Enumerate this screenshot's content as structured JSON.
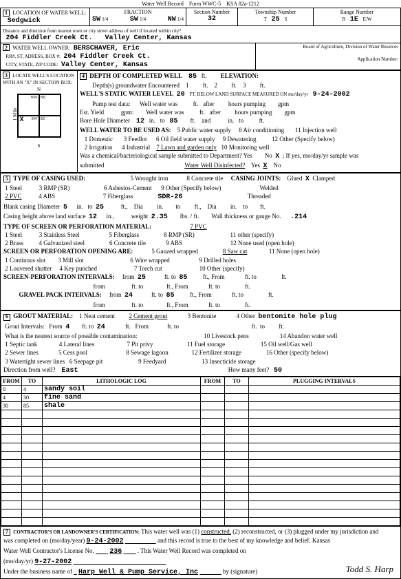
{
  "header": {
    "title": "Water Well Record",
    "form": "Form WWC-5",
    "statute": "KSA 82a-1212"
  },
  "loc": {
    "county_label": "LOCATION OF WATER WELL:",
    "county": "Sedgwick",
    "fraction_label": "FRACTION",
    "frac1": "SW",
    "frac1q": "1/4",
    "frac2": "SW",
    "frac2q": "1/4",
    "frac3": "NW",
    "frac3q": "1/4",
    "section_label": "Section Number",
    "section": "32",
    "township_label": "Township Number",
    "township_t": "T",
    "township": "25",
    "township_s": "S",
    "range_label": "Range Number",
    "range_r": "R",
    "range": "1E",
    "range_ew": "E/W"
  },
  "dist": {
    "label": "Distance and direction from nearest town or city  street address of well if located within city?",
    "addr": "204 Fiddler Creek Ct.",
    "city": "Valley Center, Kansas"
  },
  "owner": {
    "label": "WATER WELL OWNER:",
    "name": "BERSCHAVER, Eric",
    "addr_label": "RR#, ST. ADRESS, BOX #:",
    "addr": "204 Fiddler Creek Ct.",
    "csz_label": "CITY, STATE, ZIP CODE:",
    "csz": "Valley Center, Kansas",
    "board": "Board of Agriculture, Division of Water Resurces",
    "appnum_label": "Application Number:"
  },
  "locate": {
    "label": "LOCATE WELL'S LOCATION WITH AN \"X\" IN SECTION BOX:",
    "mile": "1 Mile",
    "nw": "NW",
    "ne": "NE",
    "sw": "SW",
    "se": "SE",
    "n": "N",
    "s": "S",
    "x": "X"
  },
  "depth": {
    "num": "4",
    "title": "DEPTH OF COMPLETED WELL",
    "val": "85",
    "ft": "ft.",
    "elev": "ELEVATION:",
    "d_label": "Depth(s) groundwater Encountered",
    "d1": "1",
    "d2": "2",
    "d3": "3",
    "static_label": "WELL'S STATIC WATER LEVEL",
    "static": "20",
    "static_note": "FT. BELOW LAND SURFACE MEASURED ON mo/day/yr",
    "static_date": "9-24-2002",
    "pump_label": "Pump test data:",
    "well_water": "Well water  was",
    "after": "after",
    "hours_pumping": "hours pumping",
    "gpm": "gpm",
    "est_yield": "Est.  Yield",
    "gpm2": "gpm:",
    "bore_label": "Bore Hole Diameter",
    "bore1": "12",
    "in": "in.",
    "to": "to",
    "bore2": "85",
    "ft2": "ft.",
    "and": "and",
    "use_label": "WELL WATER TO BE USED AS:",
    "u1": "1 Domestic",
    "u2": "2 Irrigation",
    "u3": "3 Feedlot",
    "u4": "4 Industrial",
    "u5": "5 Public water supply",
    "u6": "6 Oil field water supply",
    "u7": "7 Lawn and garden only",
    "u8": "8 Air conditioning",
    "u9": "9 Dewatering",
    "u10": "10 Monitoring well",
    "u11": "11 Injection well",
    "u12": "12 Other (Specify below)",
    "chem": "Was a chemical/bacteriological sample submitted to Department? Yes",
    "chem_no": "No",
    "chem_x": "X",
    "chem_if": "; If yes, mo/day/yr sample was",
    "chem_sub": "submitted",
    "disinfect": "Water Well Disinfected?",
    "dis_yes": "Yes",
    "dis_x": "X",
    "dis_no": "No"
  },
  "casing": {
    "num": "5",
    "title": "TYPE OF CASING USED:",
    "c1": "1 Steel",
    "c2": "2 PVC",
    "c3": "3 RMP (SR)",
    "c4": "4 ABS",
    "c5": "5 Wrought iron",
    "c6": "6 Asbestos-Cement",
    "c7": "7 Fiberglass",
    "c8": "8 Concrete tile",
    "c9": "9 Other (Specify below)",
    "sdr": "SDR-26",
    "joints_label": "CASING JOINTS:",
    "j1": "Glued",
    "jx": "X",
    "j2": "Clamped",
    "j3": "Welded",
    "j4": "Threaded",
    "blank_label": "Blank casing Diameter",
    "blank1": "5",
    "blank_in": "in.",
    "blank_to": "to",
    "blank2": "25",
    "ft": "ft.,",
    "dia": "Dia",
    "in2": "in.",
    "ch_label": "Casing height above land surface",
    "ch": "12",
    "ch_in": "in.,",
    "weight": "weight",
    "weight_v": "2.35",
    "lbsft": "lbs. / ft.",
    "wall": "Wall thickness or gauge No.",
    "wall_v": ".214",
    "screen_title": "TYPE OF SCREEN OR PERFORATION MATERIAL:",
    "s1": "1 Steel",
    "s2": "2 Brass",
    "s3": "3 Stainless Steel",
    "s4": "4 Galvanized steel",
    "s5": "5 Fiberglass",
    "s6": "6 Concrete tile",
    "s7": "7 PVC",
    "s8": "8 RMP (SR)",
    "s9": "9 ABS",
    "s11": "11 other (specify)",
    "s12": "12 None used (open hole)",
    "open_title": "SCREEN OR PERFORATION OPENING ARE:",
    "o1": "1 Continous slot",
    "o2": "2 Louvered shutter",
    "o3": "3 Mill slot",
    "o4": "4 Key punched",
    "o5": "5 Gauzed wrapped",
    "o6": "6 Wire wrapped",
    "o7": "7 Torch cut",
    "o8": "8 Saw cut",
    "o9": "9 Drilled holes",
    "o10": "10 Other  (specify)",
    "o11": "11 None (open hole)",
    "spi_title": "SCREEN-PERFORATION INTERVALS:",
    "from": "from",
    "spi_from1": "25",
    "spi_to1": "85",
    "fttoft": "ft. to",
    "ftFrom": "ft., From",
    "gpi_title": "GRAVEL PACK INTERVALS:",
    "gpi_from1": "24",
    "gpi_to1": "85"
  },
  "grout": {
    "num": "6",
    "title": "GROUT MATERIAL:",
    "g1": "1 Neat cement",
    "g2": "2 Cement grout",
    "g3": "3 Bentonite",
    "g4": "4 Other",
    "g4v": "bentonite hole plug",
    "gi_label": "Grout Intervals:",
    "gi_from_l": "From",
    "gi_from": "4",
    "gi_ftto": "ft. to",
    "gi_to": "24",
    "gi_ft": "ft.",
    "gi_From": "From",
    "gi_to2": "ft. to",
    "src_title": "What is the nearest source of possible contamination:",
    "x1": "1 Septic tank",
    "x2": "2 Sewer lines",
    "x3": "3 Watertight sewer lines",
    "x4": "4 Lateral lines",
    "x5": "5 Cess pool",
    "x6": "6 Seepage pit",
    "x7": "7 Pit privy",
    "x8": "8 Sewage lagoon",
    "x9": "9 Feedyard",
    "x10": "10 Livestock pens",
    "x11": "11 Fuel storage",
    "x12": "12 Fertilizer storage",
    "x13": "13 Insecticide storage",
    "x14": "14 Abandon water well",
    "x15": "15 Oil well/Gas well",
    "x16": "16 Other (specify below)",
    "dir_label": "Direction from well?",
    "dir": "East",
    "feet_label": "How many feet?",
    "feet": "50"
  },
  "log": {
    "h_from": "FROM",
    "h_to": "TO",
    "h_lith": "LITHOLOGIC LOG",
    "h_plug": "PLUGGING INTERVALS",
    "rows": [
      {
        "from": "0",
        "to": "4",
        "lith": "sandy soil"
      },
      {
        "from": "4",
        "to": "30",
        "lith": "fine sand"
      },
      {
        "from": "30",
        "to": "85",
        "lith": "shale"
      }
    ]
  },
  "cert": {
    "num": "7",
    "title": "CONTRACTOR'S OR LANDOWNER'S CERTIFICATION:",
    "t1": "This water well was (1)",
    "t1u": "constructed,",
    "t1b": "(2) reconstructed, or (3) plugged under my jurisdiction and",
    "t2": "was completed on (mo/day/year)",
    "date1": "9-24-2002",
    "t3": "and this record is true to the best of my knowledge and belief.  Kansas",
    "t4": "Water Well Contractor's License No.",
    "lic": "236",
    "t5": ". This Water Well Record was completed on",
    "t6": "(mo/day/yr)",
    "date2": "9-27-2002",
    "t7": "Under the business name of",
    "biz": "Harp Well & Pump Service, Inc",
    "t8": "by (signature)",
    "sig": "Todd S. Harp"
  }
}
